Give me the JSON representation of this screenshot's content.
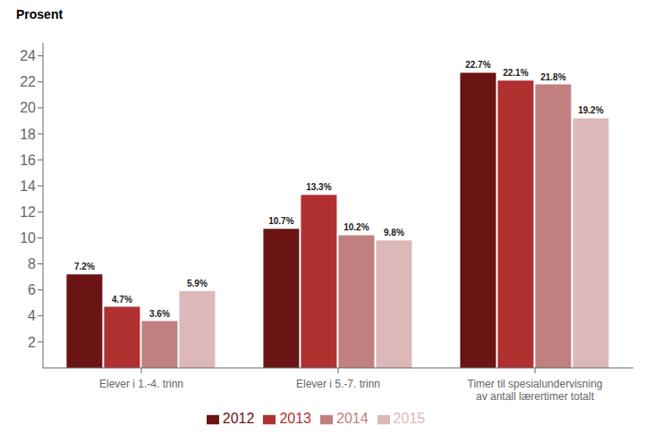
{
  "chart_data": {
    "type": "bar",
    "ylabel": "Prosent",
    "categories": [
      "Elever i 1.-4. trinn",
      "Elever i 5.-7. trinn",
      "Timer til spesialundervisning\nav antall lærertimer totalt"
    ],
    "series": [
      {
        "name": "2012",
        "color": "#6B1414",
        "values": [
          7.2,
          10.7,
          22.7
        ],
        "value_labels": [
          "7.2%",
          "10.7%",
          "22.7%"
        ]
      },
      {
        "name": "2013",
        "color": "#B03030",
        "values": [
          4.7,
          13.3,
          22.1
        ],
        "value_labels": [
          "4.7%",
          "13.3%",
          "22.1%"
        ]
      },
      {
        "name": "2014",
        "color": "#C08080",
        "values": [
          3.6,
          10.2,
          21.8
        ],
        "value_labels": [
          "3.6%",
          "10.2%",
          "21.8%"
        ]
      },
      {
        "name": "2015",
        "color": "#DDB8B8",
        "values": [
          5.9,
          9.8,
          19.2
        ],
        "value_labels": [
          "5.9%",
          "9.8%",
          "19.2%"
        ]
      }
    ],
    "ylim": [
      0,
      25
    ],
    "yticks": [
      2,
      4,
      6,
      8,
      10,
      12,
      14,
      16,
      18,
      20,
      22,
      24
    ],
    "grid": false,
    "legend": "bottom",
    "data_labels": true
  }
}
